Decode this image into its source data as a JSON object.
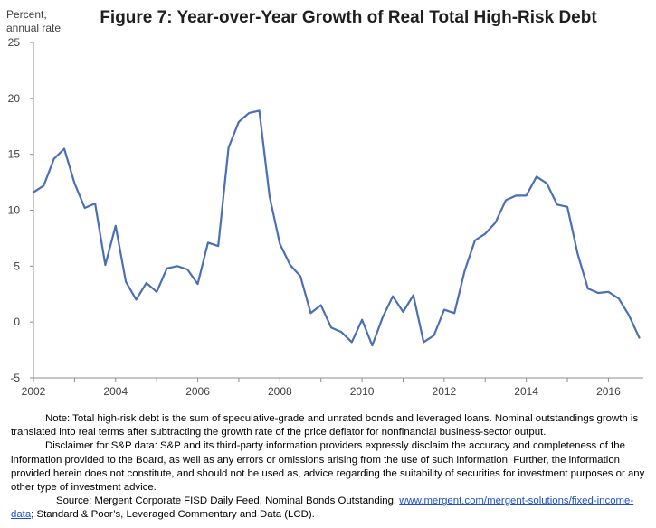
{
  "chart_data": {
    "type": "line",
    "title": "Figure 7:  Year-over-Year Growth of Real Total High-Risk Debt",
    "ylabel_line1": "Percent,",
    "ylabel_line2": "annual rate",
    "xlabel": "",
    "xlim": [
      2002,
      2016.85
    ],
    "ylim": [
      -5,
      25
    ],
    "yticks": [
      -5,
      0,
      5,
      10,
      15,
      20,
      25
    ],
    "xticks": [
      2002,
      2004,
      2006,
      2008,
      2010,
      2012,
      2014,
      2016
    ],
    "grid": false,
    "line_color": "#4a6fb5",
    "series": [
      {
        "name": "",
        "x": [
          2002.0,
          2002.25,
          2002.5,
          2002.75,
          2003.0,
          2003.25,
          2003.5,
          2003.75,
          2004.0,
          2004.25,
          2004.5,
          2004.75,
          2005.0,
          2005.25,
          2005.5,
          2005.75,
          2006.0,
          2006.25,
          2006.5,
          2006.75,
          2007.0,
          2007.25,
          2007.5,
          2007.75,
          2008.0,
          2008.25,
          2008.5,
          2008.75,
          2009.0,
          2009.25,
          2009.5,
          2009.75,
          2010.0,
          2010.25,
          2010.5,
          2010.75,
          2011.0,
          2011.25,
          2011.5,
          2011.75,
          2012.0,
          2012.25,
          2012.5,
          2012.75,
          2013.0,
          2013.25,
          2013.5,
          2013.75,
          2014.0,
          2014.25,
          2014.5,
          2014.75,
          2015.0,
          2015.25,
          2015.5,
          2015.75,
          2016.0,
          2016.25,
          2016.5,
          2016.75
        ],
        "values": [
          11.6,
          12.2,
          14.6,
          15.5,
          12.4,
          10.2,
          10.6,
          5.1,
          8.6,
          3.6,
          2.0,
          3.5,
          2.7,
          4.8,
          5.0,
          4.7,
          3.4,
          7.1,
          6.8,
          15.6,
          17.9,
          18.7,
          18.9,
          11.2,
          7.0,
          5.1,
          4.1,
          0.8,
          1.5,
          -0.5,
          -0.9,
          -1.8,
          0.2,
          -2.1,
          0.4,
          2.3,
          0.9,
          2.4,
          -1.8,
          -1.2,
          1.1,
          0.8,
          4.6,
          7.3,
          7.9,
          8.9,
          10.9,
          11.3,
          11.3,
          13.0,
          12.4,
          10.5,
          10.3,
          6.1,
          3.0,
          2.6,
          2.7,
          2.1,
          0.6,
          -1.4
        ]
      }
    ]
  },
  "notes": {
    "note": "Note: Total high-risk debt is the sum of speculative-grade and unrated bonds and leveraged loans.  Nominal outstandings growth is translated into real terms after subtracting the growth rate of the price deflator for nonfinancial business-sector output.",
    "disclaimer": "Disclaimer for S&P data:  S&P and its third-party information providers expressly disclaim the accuracy and completeness of the information provided to the Board, as well as any errors or omissions arising from the use of such information. Further, the information provided herein does not constitute, and should not be used as, advice regarding the suitability of securities for investment purposes or any other type of investment advice.",
    "source_prefix": "Source:  Mergent Corporate FISD Daily Feed, Nominal Bonds Outstanding, ",
    "source_link": "www.mergent.com/mergent-solutions/fixed-income-data",
    "source_suffix": "; Standard & Poor’s, Leveraged Commentary and Data (LCD)."
  }
}
